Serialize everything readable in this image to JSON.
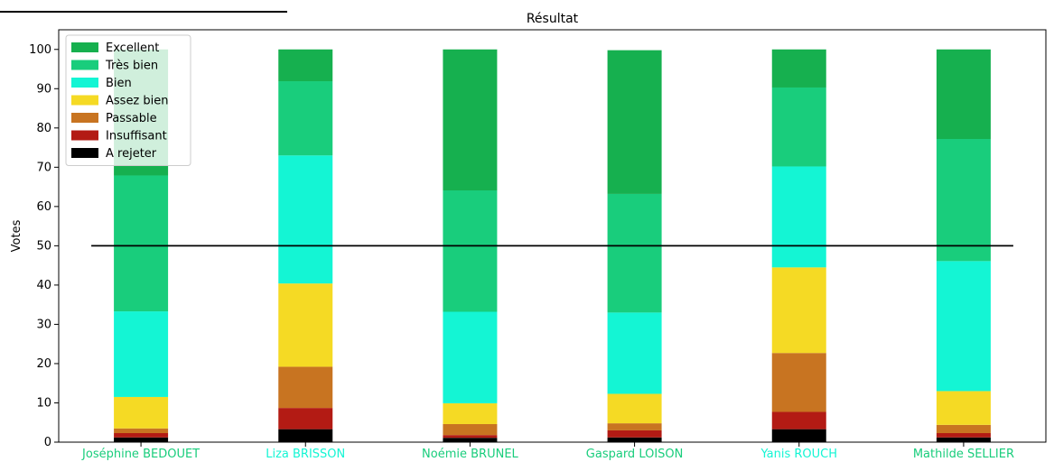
{
  "chart_data": {
    "type": "bar",
    "stacked": true,
    "title": "Résultat",
    "xlabel": "",
    "ylabel": "Votes",
    "ylim": [
      0,
      105
    ],
    "yticks": [
      0,
      10,
      20,
      30,
      40,
      50,
      60,
      70,
      80,
      90,
      100
    ],
    "grid": false,
    "legend_position": "top-left",
    "reference_line": {
      "y": 50,
      "color": "#000000"
    },
    "categories": [
      "Joséphine BEDOUET",
      "Liza BRISSON",
      "Noémie BRUNEL",
      "Gaspard LOISON",
      "Yanis ROUCH",
      "Mathilde SELLIER"
    ],
    "category_label_colors": [
      "#19cd7c",
      "#14f5d4",
      "#19cd7c",
      "#19cd7c",
      "#14f5d4",
      "#19cd7c"
    ],
    "series": [
      {
        "name": "A rejeter",
        "color": "#000000",
        "values": [
          1.2,
          3.3,
          1.1,
          1.2,
          3.3,
          1.2
        ]
      },
      {
        "name": "Insuffisant",
        "color": "#b31b14",
        "values": [
          1.1,
          5.4,
          0.7,
          1.8,
          4.4,
          1.1
        ]
      },
      {
        "name": "Passable",
        "color": "#c87421",
        "values": [
          1.2,
          10.5,
          2.8,
          1.8,
          15.0,
          2.1
        ]
      },
      {
        "name": "Assez bien",
        "color": "#f5da24",
        "values": [
          8.0,
          21.2,
          5.3,
          7.5,
          21.8,
          8.6
        ]
      },
      {
        "name": "Bien",
        "color": "#14f5d4",
        "values": [
          21.8,
          32.6,
          23.3,
          20.7,
          25.7,
          33.1
        ]
      },
      {
        "name": "Très bien",
        "color": "#19cd7c",
        "values": [
          34.6,
          18.9,
          30.9,
          30.2,
          20.1,
          31.1
        ]
      },
      {
        "name": "Excellent",
        "color": "#16b04f",
        "values": [
          32.1,
          8.1,
          35.9,
          36.6,
          9.7,
          22.8
        ]
      }
    ],
    "legend_order": [
      "Excellent",
      "Très bien",
      "Bien",
      "Assez bien",
      "Passable",
      "Insuffisant",
      "A rejeter"
    ]
  }
}
